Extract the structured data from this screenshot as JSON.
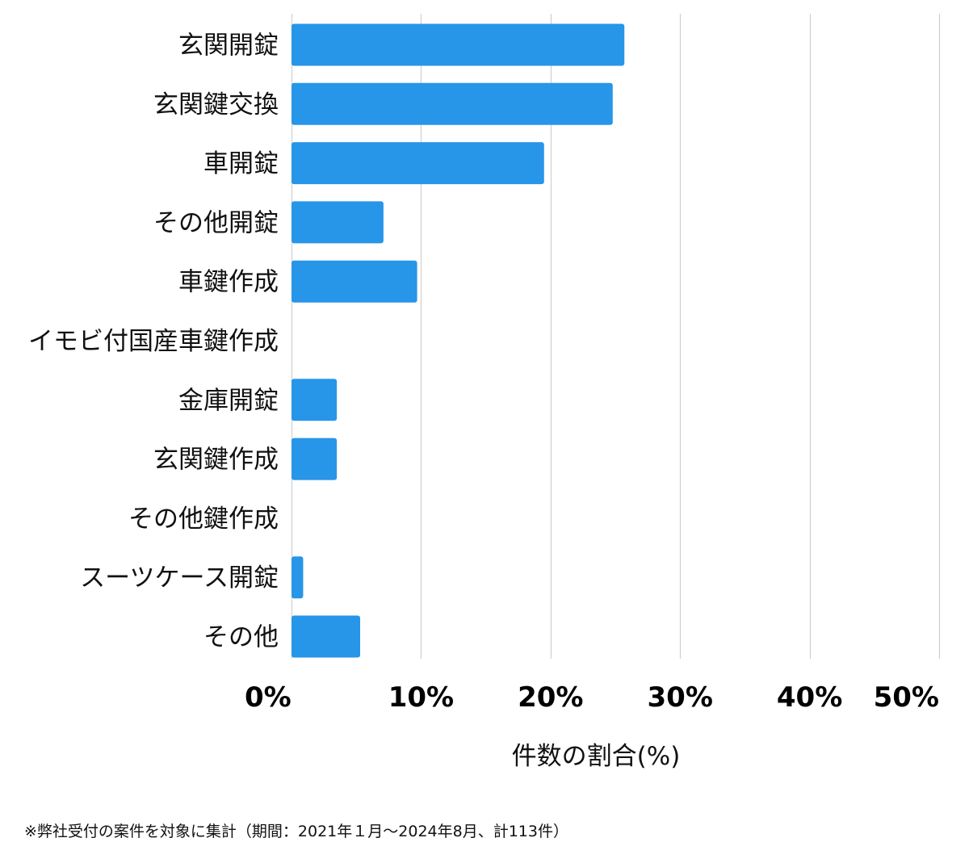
{
  "chart_data": {
    "type": "bar",
    "orientation": "horizontal",
    "categories": [
      "玄関開錠",
      "玄関鍵交換",
      "車開錠",
      "その他開錠",
      "車鍵作成",
      "イモビ付国産車鍵作成",
      "金庫開錠",
      "玄関鍵作成",
      "その他鍵作成",
      "スーツケース開錠",
      "その他"
    ],
    "values": [
      25.7,
      24.8,
      19.5,
      7.1,
      9.7,
      0,
      3.5,
      3.5,
      0,
      0.9,
      5.3
    ],
    "xlim": [
      0,
      50
    ],
    "xticks": [
      0,
      10,
      20,
      30,
      40,
      50
    ],
    "xtick_labels": [
      "0%",
      "10%",
      "20%",
      "30%",
      "40%",
      "50%"
    ],
    "xlabel": "件数の割合(%)",
    "ylabel": "",
    "grid": "vertical",
    "bar_color": "#2795e8"
  },
  "footnote": "※弊社受付の案件を対象に集計（期間：2021年１月～2024年8月、計113件）"
}
